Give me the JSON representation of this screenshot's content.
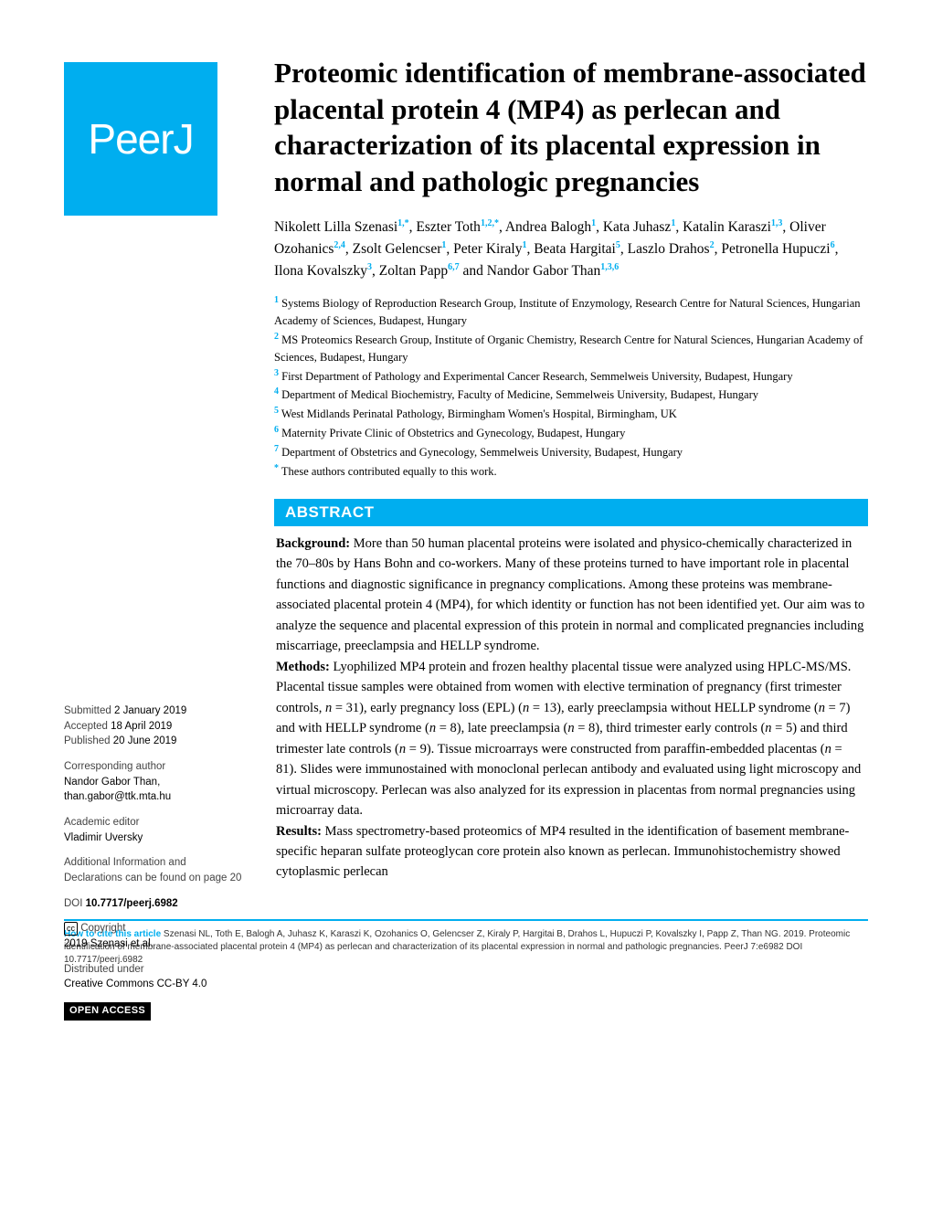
{
  "logo": "PeerJ",
  "title": "Proteomic identification of membrane-associated placental protein 4 (MP4) as perlecan and characterization of its placental expression in normal and pathologic pregnancies",
  "authors": [
    {
      "name": "Nikolett Lilla Szenasi",
      "aff": "1,*"
    },
    {
      "name": "Eszter Toth",
      "aff": "1,2,*"
    },
    {
      "name": "Andrea Balogh",
      "aff": "1"
    },
    {
      "name": "Kata Juhasz",
      "aff": "1"
    },
    {
      "name": "Katalin Karaszi",
      "aff": "1,3"
    },
    {
      "name": "Oliver Ozohanics",
      "aff": "2,4"
    },
    {
      "name": "Zsolt Gelencser",
      "aff": "1"
    },
    {
      "name": "Peter Kiraly",
      "aff": "1"
    },
    {
      "name": "Beata Hargitai",
      "aff": "5"
    },
    {
      "name": "Laszlo Drahos",
      "aff": "2"
    },
    {
      "name": "Petronella Hupuczi",
      "aff": "6"
    },
    {
      "name": "Ilona Kovalszky",
      "aff": "3"
    },
    {
      "name": "Zoltan Papp",
      "aff": "6,7"
    },
    {
      "name": "Nandor Gabor Than",
      "aff": "1,3,6"
    }
  ],
  "and_label": " and ",
  "affiliations": [
    {
      "num": "1",
      "text": "Systems Biology of Reproduction Research Group, Institute of Enzymology, Research Centre for Natural Sciences, Hungarian Academy of Sciences, Budapest, Hungary"
    },
    {
      "num": "2",
      "text": "MS Proteomics Research Group, Institute of Organic Chemistry, Research Centre for Natural Sciences, Hungarian Academy of Sciences, Budapest, Hungary"
    },
    {
      "num": "3",
      "text": "First Department of Pathology and Experimental Cancer Research, Semmelweis University, Budapest, Hungary"
    },
    {
      "num": "4",
      "text": "Department of Medical Biochemistry, Faculty of Medicine, Semmelweis University, Budapest, Hungary"
    },
    {
      "num": "5",
      "text": "West Midlands Perinatal Pathology, Birmingham Women's Hospital, Birmingham, UK"
    },
    {
      "num": "6",
      "text": "Maternity Private Clinic of Obstetrics and Gynecology, Budapest, Hungary"
    },
    {
      "num": "7",
      "text": "Department of Obstetrics and Gynecology, Semmelweis University, Budapest, Hungary"
    },
    {
      "num": "*",
      "text": "These authors contributed equally to this work."
    }
  ],
  "abstract_label": "ABSTRACT",
  "abstract": {
    "background_label": "Background:",
    "background": " More than 50 human placental proteins were isolated and physico-chemically characterized in the 70–80s by Hans Bohn and co-workers. Many of these proteins turned to have important role in placental functions and diagnostic significance in pregnancy complications. Among these proteins was membrane-associated placental protein 4 (MP4), for which identity or function has not been identified yet. Our aim was to analyze the sequence and placental expression of this protein in normal and complicated pregnancies including miscarriage, preeclampsia and HELLP syndrome.",
    "methods_label": "Methods:",
    "methods": " Lyophilized MP4 protein and frozen healthy placental tissue were analyzed using HPLC-MS/MS. Placental tissue samples were obtained from women with elective termination of pregnancy (first trimester controls, n = 31), early pregnancy loss (EPL) (n = 13), early preeclampsia without HELLP syndrome (n = 7) and with HELLP syndrome (n = 8), late preeclampsia (n = 8), third trimester early controls (n = 5) and third trimester late controls (n = 9). Tissue microarrays were constructed from paraffin-embedded placentas (n = 81). Slides were immunostained with monoclonal perlecan antibody and evaluated using light microscopy and virtual microscopy. Perlecan was also analyzed for its expression in placentas from normal pregnancies using microarray data.",
    "results_label": "Results:",
    "results": " Mass spectrometry-based proteomics of MP4 resulted in the identification of basement membrane-specific heparan sulfate proteoglycan core protein also known as perlecan. Immunohistochemistry showed cytoplasmic perlecan"
  },
  "sidebar": {
    "submitted_label": "Submitted",
    "submitted": " 2 January 2019",
    "accepted_label": "Accepted",
    "accepted": " 18 April 2019",
    "published_label": "Published",
    "published": " 20 June 2019",
    "corresponding_label": "Corresponding author",
    "corresponding_name": "Nandor Gabor Than,",
    "corresponding_email": "than.gabor@ttk.mta.hu",
    "editor_label": "Academic editor",
    "editor": "Vladimir Uversky",
    "additional": "Additional Information and Declarations can be found on page 20",
    "doi_label": "DOI ",
    "doi": "10.7717/peerj.6982",
    "copyright_label": " Copyright",
    "copyright": "2019 Szenasi et al.",
    "distributed_label": "Distributed under",
    "distributed": "Creative Commons CC-BY 4.0",
    "open_access": "OPEN ACCESS"
  },
  "citation": {
    "label": "How to cite this article",
    "text": " Szenasi NL, Toth E, Balogh A, Juhasz K, Karaszi K, Ozohanics O, Gelencser Z, Kiraly P, Hargitai B, Drahos L, Hupuczi P, Kovalszky I, Papp Z, Than NG. 2019. Proteomic identification of membrane-associated placental protein 4 (MP4) as perlecan and characterization of its placental expression in normal and pathologic pregnancies. PeerJ 7:e6982 DOI 10.7717/peerj.6982"
  },
  "colors": {
    "brand": "#00aeef"
  }
}
